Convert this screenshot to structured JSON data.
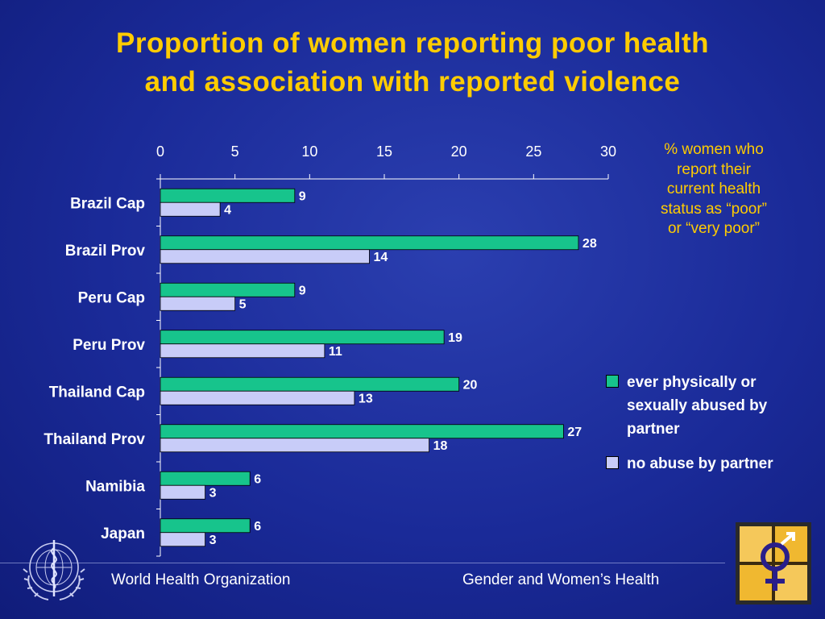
{
  "colors": {
    "title": "#ffcc00",
    "abused": "#17c48c",
    "no_abuse": "#c8ccf8",
    "text": "#ffffff",
    "background": "#1f2ea0"
  },
  "title_lines": [
    "Proportion of women reporting poor health",
    "and association with reported violence"
  ],
  "note": {
    "line1": "% women who",
    "line2": "report their",
    "line3": "current health",
    "line4": "status as “poor”",
    "line5": "or “very poor”"
  },
  "chart_data": {
    "type": "bar",
    "orientation": "horizontal",
    "categories": [
      "Brazil Cap",
      "Brazil Prov",
      "Peru Cap",
      "Peru Prov",
      "Thailand Cap",
      "Thailand Prov",
      "Namibia",
      "Japan"
    ],
    "series": [
      {
        "name": "ever physically or sexually abused by partner",
        "color": "#17c48c",
        "values": [
          9,
          28,
          9,
          19,
          20,
          27,
          6,
          6
        ]
      },
      {
        "name": "no abuse by partner",
        "color": "#c8ccf8",
        "values": [
          4,
          14,
          5,
          11,
          13,
          18,
          3,
          3
        ]
      }
    ],
    "xlim": [
      0,
      30
    ],
    "xticks": [
      0,
      5,
      10,
      15,
      20,
      25,
      30
    ],
    "xaxis_position": "top",
    "grid": false,
    "legend_position": "right"
  },
  "footer": {
    "left": "World Health Organization",
    "right": "Gender and Women’s Health"
  },
  "icons": {
    "left_logo": "who-emblem-icon",
    "right_logo": "gender-symbol-icon"
  }
}
